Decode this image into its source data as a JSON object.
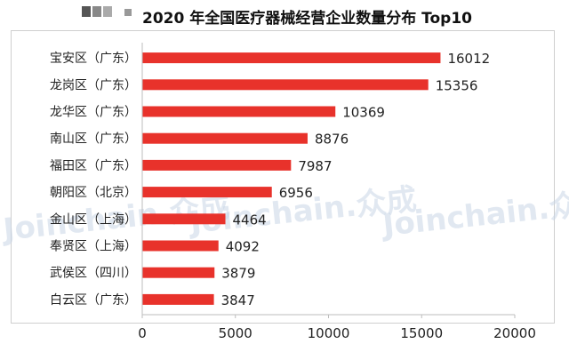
{
  "chart_data": {
    "type": "bar",
    "orientation": "horizontal",
    "title": "2020 年全国医疗器械经营企业数量分布 Top10",
    "categories": [
      "宝安区（广东）",
      "龙岗区（广东）",
      "龙华区（广东）",
      "南山区（广东）",
      "福田区（广东）",
      "朝阳区（北京）",
      "金山区（上海）",
      "奉贤区（上海）",
      "武侯区（四川）",
      "白云区（广东）"
    ],
    "values": [
      16012,
      15356,
      10369,
      8876,
      7987,
      6956,
      4464,
      4092,
      3879,
      3847
    ],
    "xlim": [
      0,
      20000
    ],
    "xticks": [
      0,
      5000,
      10000,
      15000,
      20000
    ],
    "data_labels": true,
    "grid": false,
    "legend": "none",
    "bar_color": "#e8322b"
  },
  "watermark": {
    "text": "Joinchain.众成",
    "color": "#c9d5e6"
  }
}
